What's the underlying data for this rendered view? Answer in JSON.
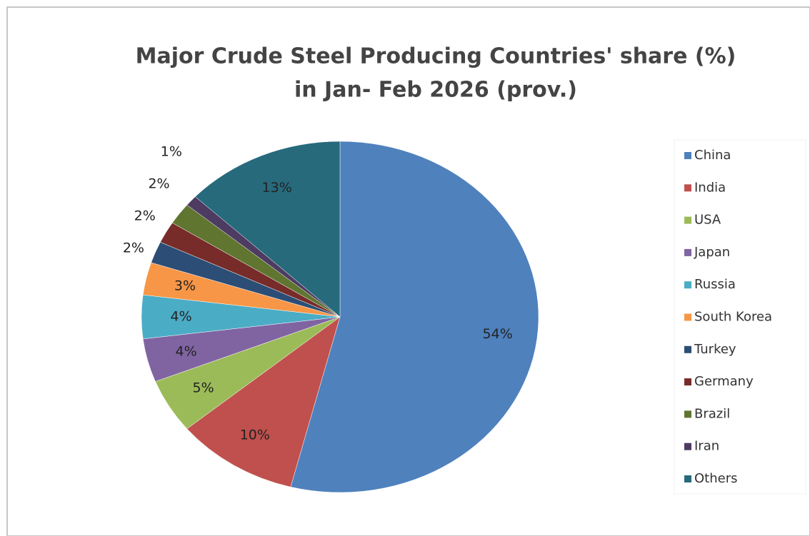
{
  "chart_data": {
    "type": "pie",
    "title": [
      "Major Crude Steel Producing Countries' share (%)",
      "in  Jan- Feb 2026 (prov.)"
    ],
    "categories": [
      "China",
      "India",
      "USA",
      "Japan",
      "Russia",
      "South Korea",
      "Turkey",
      "Germany",
      "Brazil",
      "Iran",
      "Others"
    ],
    "values": [
      54,
      10,
      5,
      4,
      4,
      3,
      2,
      2,
      2,
      1,
      13
    ],
    "value_labels": [
      "54%",
      "10%",
      "5%",
      "4%",
      "4%",
      "3%",
      "2%",
      "2%",
      "2%",
      "1%",
      "13%"
    ],
    "colors": [
      "#4f81bd",
      "#c0504d",
      "#9bbb59",
      "#8064a2",
      "#4bacc6",
      "#f79646",
      "#2c4d75",
      "#772c2a",
      "#5f7530",
      "#4d3b62",
      "#276a7c"
    ],
    "legend": "right"
  }
}
